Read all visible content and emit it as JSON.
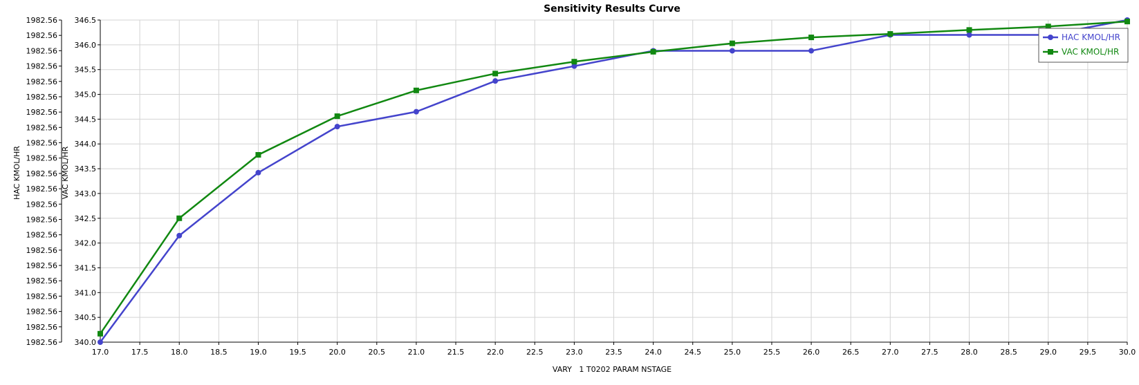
{
  "chart_data": {
    "type": "line",
    "title": "Sensitivity Results Curve",
    "xlabel": "VARY   1 T0202 PARAM NSTAGE",
    "ylabel_left": "HAC KMOL/HR",
    "ylabel_right": "VAC KMOL/HR",
    "x": [
      17.0,
      18.0,
      19.0,
      20.0,
      21.0,
      22.0,
      23.0,
      24.0,
      25.0,
      26.0,
      27.0,
      28.0,
      29.0,
      30.0
    ],
    "xlim": [
      17.0,
      30.0
    ],
    "x_ticks": [
      "17.0",
      "17.5",
      "18.0",
      "18.5",
      "19.0",
      "19.5",
      "20.0",
      "20.5",
      "21.0",
      "21.5",
      "22.0",
      "22.5",
      "23.0",
      "23.5",
      "24.0",
      "24.5",
      "25.0",
      "25.5",
      "26.0",
      "26.5",
      "27.0",
      "27.5",
      "28.0",
      "28.5",
      "29.0",
      "29.5",
      "30.0"
    ],
    "left_axis_ticks": [
      "1982.56",
      "1982.56",
      "1982.56",
      "1982.56",
      "1982.56",
      "1982.56",
      "1982.56",
      "1982.56",
      "1982.56",
      "1982.56",
      "1982.56",
      "1982.56",
      "1982.56",
      "1982.56",
      "1982.56",
      "1982.56",
      "1982.56",
      "1982.56",
      "1982.56",
      "1982.56",
      "1982.56",
      "1982.56"
    ],
    "right_axis_ticks": [
      "340.0",
      "340.5",
      "341.0",
      "341.5",
      "342.0",
      "342.5",
      "343.0",
      "343.5",
      "344.0",
      "344.5",
      "345.0",
      "345.5",
      "346.0",
      "346.5"
    ],
    "ylim": [
      340.0,
      346.5
    ],
    "series": [
      {
        "name": "HAC KMOL/HR",
        "color": "#4444cc",
        "marker": "circle",
        "values": [
          340.0,
          342.15,
          343.42,
          344.35,
          344.65,
          345.27,
          345.57,
          345.88,
          345.88,
          345.88,
          346.2,
          346.2,
          346.2,
          346.5
        ]
      },
      {
        "name": "VAC KMOL/HR",
        "color": "#118811",
        "marker": "square",
        "values": [
          340.17,
          342.5,
          343.78,
          344.56,
          345.08,
          345.42,
          345.66,
          345.86,
          346.03,
          346.15,
          346.22,
          346.3,
          346.37,
          346.47
        ]
      }
    ],
    "grid": true,
    "legend_position": "top-right"
  }
}
